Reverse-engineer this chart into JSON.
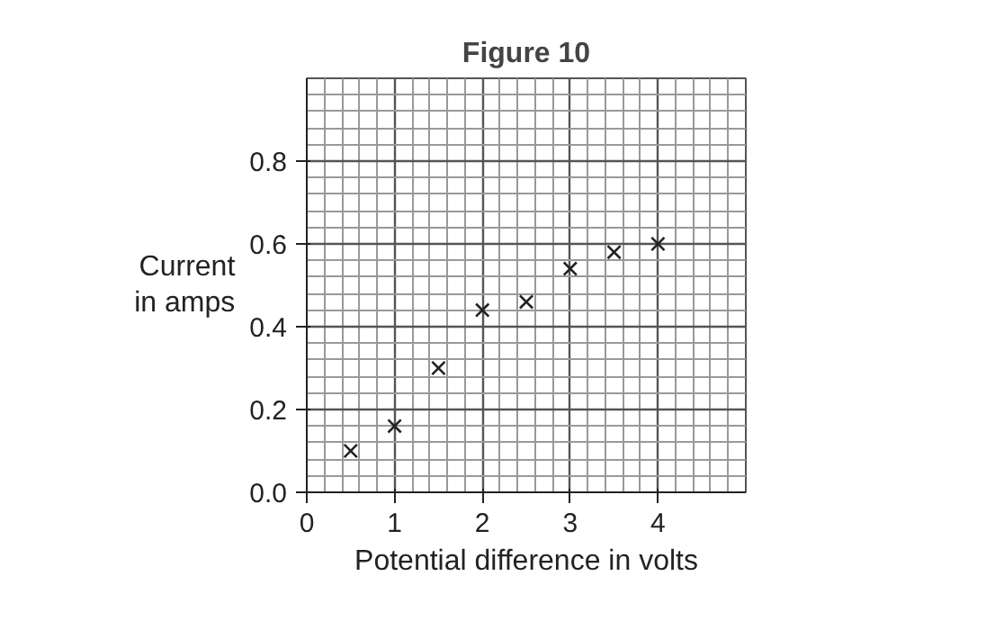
{
  "chart_data": {
    "type": "scatter",
    "title": "Figure 10",
    "xlabel": "Potential difference in volts",
    "ylabel": "Current\nin amps",
    "x": [
      0.5,
      1,
      1.5,
      2,
      2.5,
      3,
      3.5,
      4
    ],
    "values": [
      0.1,
      0.16,
      0.3,
      0.44,
      0.46,
      0.54,
      0.58,
      0.6
    ],
    "color": "#222222",
    "marker": "cross",
    "xlim": [
      0,
      5
    ],
    "ylim": [
      0,
      1
    ],
    "xticks": [
      0,
      1,
      2,
      3,
      4
    ],
    "yticks": [
      {
        "value": 0,
        "label": "0.0"
      },
      0.2,
      0.4,
      0.6,
      0.8
    ],
    "grid": true
  }
}
